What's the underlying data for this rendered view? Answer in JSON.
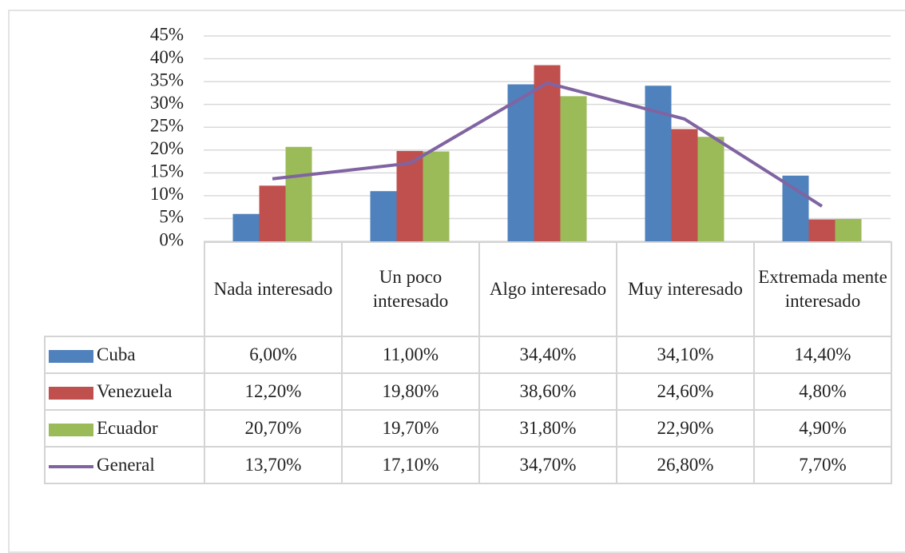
{
  "chart_data": {
    "type": "bar",
    "categories": [
      "Nada interesado",
      "Un poco interesado",
      "Algo interesado",
      "Muy interesado",
      "Extremada mente interesado"
    ],
    "series": [
      {
        "name": "Cuba",
        "color": "#4f81bd",
        "values": [
          6.0,
          11.0,
          34.4,
          34.1,
          14.4
        ],
        "value_labels": [
          "6,00%",
          "11,00%",
          "34,40%",
          "34,10%",
          "14,40%"
        ]
      },
      {
        "name": "Venezuela",
        "color": "#c0504d",
        "values": [
          12.2,
          19.8,
          38.6,
          24.6,
          4.8
        ],
        "value_labels": [
          "12,20%",
          "19,80%",
          "38,60%",
          "24,60%",
          "4,80%"
        ]
      },
      {
        "name": "Ecuador",
        "color": "#9bbb59",
        "values": [
          20.7,
          19.7,
          31.8,
          22.9,
          4.9
        ],
        "value_labels": [
          "20,70%",
          "19,70%",
          "31,80%",
          "22,90%",
          "4,90%"
        ]
      },
      {
        "name": "General",
        "type": "line",
        "color": "#8064a2",
        "values": [
          13.7,
          17.1,
          34.7,
          26.8,
          7.7
        ],
        "value_labels": [
          "13,70%",
          "17,10%",
          "34,70%",
          "26,80%",
          "7,70%"
        ]
      }
    ],
    "ylim": [
      0,
      45
    ],
    "yticks": [
      {
        "value": 0,
        "label": "0%"
      },
      {
        "value": 5,
        "label": "5%"
      },
      {
        "value": 10,
        "label": "10%"
      },
      {
        "value": 15,
        "label": "15%"
      },
      {
        "value": 20,
        "label": "20%"
      },
      {
        "value": 25,
        "label": "25%"
      },
      {
        "value": 30,
        "label": "30%"
      },
      {
        "value": 35,
        "label": "35%"
      },
      {
        "value": 40,
        "label": "40%"
      },
      {
        "value": 45,
        "label": "45%"
      }
    ],
    "grid": true
  }
}
